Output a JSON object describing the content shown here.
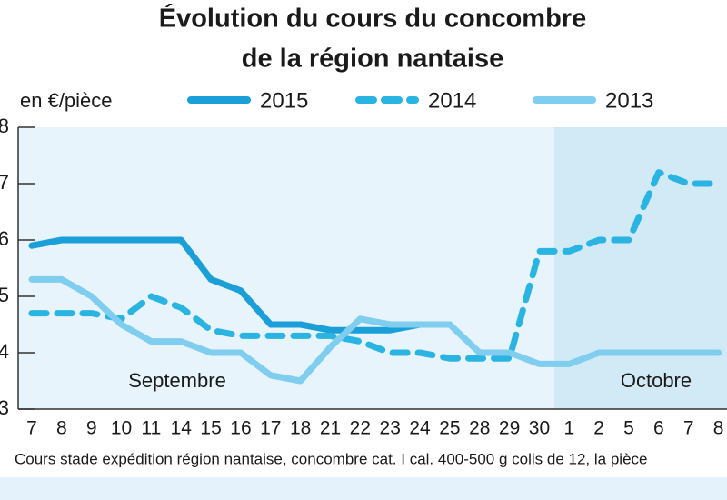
{
  "chart_data": {
    "type": "line",
    "title": [
      "Évolution du cours du concombre",
      "de la région nantaise"
    ],
    "y_label": "en €/pièce",
    "categories": [
      "7",
      "8",
      "9",
      "10",
      "11",
      "14",
      "15",
      "16",
      "17",
      "18",
      "21",
      "22",
      "23",
      "24",
      "25",
      "28",
      "29",
      "30",
      "1",
      "2",
      "5",
      "6",
      "7",
      "8"
    ],
    "series": [
      {
        "name": "2015",
        "color": "#1a9fd8",
        "dash": false,
        "values": [
          5.9,
          6.0,
          6.0,
          6.0,
          6.0,
          6.0,
          5.3,
          5.1,
          4.5,
          4.5,
          4.4,
          4.4,
          4.4,
          4.5,
          4.5,
          null,
          null,
          null,
          null,
          null,
          null,
          null,
          null,
          null
        ]
      },
      {
        "name": "2014",
        "color": "#2ab4e2",
        "dash": true,
        "values": [
          4.7,
          4.7,
          4.7,
          4.6,
          5.0,
          4.8,
          4.4,
          4.3,
          4.3,
          4.3,
          4.3,
          4.2,
          4.0,
          4.0,
          3.9,
          3.9,
          3.9,
          5.8,
          5.8,
          6.0,
          6.0,
          7.2,
          7.0,
          7.0
        ]
      },
      {
        "name": "2013",
        "color": "#7fcdef",
        "dash": false,
        "values": [
          5.3,
          5.3,
          5.0,
          4.5,
          4.2,
          4.2,
          4.0,
          4.0,
          3.6,
          3.5,
          4.1,
          4.6,
          4.5,
          4.5,
          4.5,
          4.0,
          4.0,
          3.8,
          3.8,
          4.0,
          4.0,
          4.0,
          4.0,
          4.0
        ]
      }
    ],
    "ylim": [
      3,
      8
    ],
    "yticks": [
      3,
      4,
      5,
      6,
      7,
      8
    ],
    "month_labels": [
      "Septembre",
      "Octobre"
    ],
    "note": "Cours stade expédition région nantaise, concombre cat. I cal. 400-500 g colis de 12, la pièce"
  }
}
